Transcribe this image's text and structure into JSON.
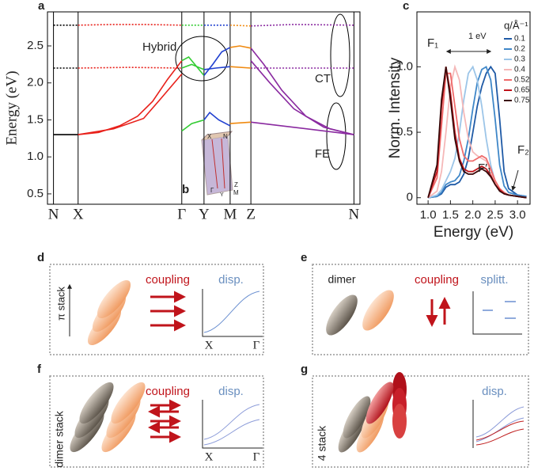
{
  "chart_data": [
    {
      "type": "line",
      "panel_label": "a",
      "ylabel": "Energy (eV)",
      "xlim": [
        -2,
        102
      ],
      "ylim": [
        0.36,
        2.96
      ],
      "xgrid": true,
      "xticks": [
        {
          "value": 0,
          "label": "N"
        },
        {
          "value": 8.2,
          "label": "X"
        },
        {
          "value": 42.7,
          "label": "Γ"
        },
        {
          "value": 50.1,
          "label": "Y"
        },
        {
          "value": 58.8,
          "label": "M"
        },
        {
          "value": 65.7,
          "label": "Z"
        },
        {
          "value": 100,
          "label": "N"
        }
      ],
      "yticks": [
        0.5,
        {
          "value": 1,
          "label": "1.0"
        },
        1.5,
        {
          "value": 2,
          "label": "2.0"
        },
        2.5
      ],
      "annotations": [
        "Hybrid",
        "CT",
        "FE"
      ],
      "series": [
        {
          "color": "#000000",
          "dash": true,
          "x": [
            0,
            8.2
          ],
          "values": [
            2.78,
            2.78
          ]
        },
        {
          "color": "#e8201a",
          "dash": true,
          "x": [
            8.2,
            20,
            30,
            42.7
          ],
          "values": [
            2.78,
            2.79,
            2.79,
            2.78
          ]
        },
        {
          "color": "#33cc33",
          "dash": true,
          "x": [
            42.7,
            50.1
          ],
          "values": [
            2.78,
            2.78
          ]
        },
        {
          "color": "#2040d0",
          "dash": true,
          "x": [
            50.1,
            58.8
          ],
          "values": [
            2.78,
            2.78
          ]
        },
        {
          "color": "#f08a10",
          "dash": true,
          "x": [
            58.8,
            65.7
          ],
          "values": [
            2.78,
            2.77
          ]
        },
        {
          "color": "#8a2aa0",
          "dash": true,
          "x": [
            65.7,
            80,
            100
          ],
          "values": [
            2.77,
            2.79,
            2.78
          ]
        },
        {
          "color": "#000000",
          "dash": true,
          "x": [
            0,
            8.2
          ],
          "values": [
            2.2,
            2.2
          ]
        },
        {
          "color": "#e8201a",
          "dash": true,
          "x": [
            8.2,
            25,
            42.7
          ],
          "values": [
            2.2,
            2.21,
            2.2
          ]
        },
        {
          "color": "#33cc33",
          "x": [
            42.7,
            46,
            50.1
          ],
          "values": [
            2.2,
            2.25,
            2.18
          ]
        },
        {
          "color": "#2040d0",
          "x": [
            50.1,
            54,
            58.8
          ],
          "values": [
            2.18,
            2.2,
            2.22
          ]
        },
        {
          "color": "#f08a10",
          "x": [
            58.8,
            65.7
          ],
          "values": [
            2.22,
            2.2
          ]
        },
        {
          "color": "#8a2aa0",
          "dash": true,
          "x": [
            65.7,
            80,
            100
          ],
          "values": [
            2.2,
            2.2,
            2.2
          ]
        },
        {
          "color": "#000000",
          "x": [
            0,
            8.2
          ],
          "values": [
            1.3,
            1.3
          ]
        },
        {
          "color": "#e8201a",
          "x": [
            8.2,
            15,
            22,
            28,
            33,
            38,
            42.7
          ],
          "values": [
            1.3,
            1.33,
            1.42,
            1.55,
            1.75,
            2.05,
            2.3
          ]
        },
        {
          "color": "#e8201a",
          "x": [
            8.2,
            20,
            30,
            36,
            42.7
          ],
          "values": [
            1.3,
            1.38,
            1.52,
            1.8,
            2.12
          ]
        },
        {
          "color": "#33cc33",
          "x": [
            42.7,
            45,
            50.1
          ],
          "values": [
            2.3,
            2.35,
            2.1
          ]
        },
        {
          "color": "#2040d0",
          "x": [
            50.1,
            53,
            56,
            58.8
          ],
          "values": [
            2.1,
            2.25,
            2.42,
            2.48
          ]
        },
        {
          "color": "#f08a10",
          "x": [
            58.8,
            62,
            65.7
          ],
          "values": [
            2.48,
            2.5,
            2.47
          ]
        },
        {
          "color": "#8a2aa0",
          "x": [
            65.7,
            70,
            76,
            84,
            92,
            100
          ],
          "values": [
            2.47,
            2.25,
            1.9,
            1.55,
            1.38,
            1.3
          ]
        },
        {
          "color": "#8a2aa0",
          "x": [
            65.7,
            72,
            80,
            90,
            100
          ],
          "values": [
            2.3,
            2.0,
            1.65,
            1.4,
            1.3
          ]
        },
        {
          "color": "#33cc33",
          "x": [
            42.7,
            46,
            50.1
          ],
          "values": [
            1.35,
            1.45,
            1.5
          ]
        },
        {
          "color": "#2040d0",
          "x": [
            50.1,
            52,
            55,
            58.8
          ],
          "values": [
            1.5,
            1.6,
            1.5,
            1.42
          ]
        },
        {
          "color": "#f08a10",
          "x": [
            58.8,
            65.7
          ],
          "values": [
            1.45,
            1.47
          ]
        },
        {
          "color": "#8a2aa0",
          "x": [
            65.7,
            80,
            100
          ],
          "values": [
            1.47,
            1.4,
            1.3
          ]
        }
      ]
    },
    {
      "type": "line",
      "panel_label": "c",
      "xlabel": "Energy (eV)",
      "ylabel": "Norm. Intensity",
      "legend_title": "q/Å⁻¹",
      "legend": "upper right",
      "xlim": [
        0.75,
        3.28
      ],
      "ylim": [
        -0.05,
        1.42
      ],
      "xticks": [
        {
          "value": 1,
          "label": "1.0"
        },
        1.5,
        {
          "value": 2,
          "label": "2.0"
        },
        2.5,
        {
          "value": 3,
          "label": "3.0"
        }
      ],
      "yticks": [
        0,
        0.5,
        {
          "value": 1,
          "label": "1.0"
        }
      ],
      "annotations": [
        "F₁",
        "1 eV",
        "F′₁",
        "F₂"
      ],
      "x": [
        1.0,
        1.2,
        1.3,
        1.4,
        1.5,
        1.6,
        1.7,
        1.8,
        1.9,
        2.0,
        2.1,
        2.2,
        2.3,
        2.4,
        2.5,
        2.6,
        2.7,
        2.8,
        3.0,
        3.2
      ],
      "series": [
        {
          "name": "0.1",
          "color": "#1f5aa6",
          "values": [
            0,
            0.01,
            0.03,
            0.08,
            0.1,
            0.1,
            0.12,
            0.18,
            0.3,
            0.5,
            0.7,
            0.85,
            0.95,
            1.0,
            0.95,
            0.6,
            0.2,
            0.07,
            0.02,
            0.01
          ]
        },
        {
          "name": "0.2",
          "color": "#3f87c8",
          "values": [
            0,
            0.01,
            0.04,
            0.1,
            0.12,
            0.13,
            0.17,
            0.28,
            0.45,
            0.68,
            0.88,
            0.98,
            1.0,
            0.9,
            0.6,
            0.25,
            0.09,
            0.04,
            0.02,
            0.01
          ]
        },
        {
          "name": "0.3",
          "color": "#9cc5e8",
          "values": [
            0,
            0.02,
            0.06,
            0.13,
            0.2,
            0.3,
            0.5,
            0.75,
            0.95,
            1.0,
            0.9,
            0.7,
            0.45,
            0.25,
            0.12,
            0.06,
            0.03,
            0.02,
            0.01,
            0
          ]
        },
        {
          "name": "0.4",
          "color": "#f5b8b8",
          "values": [
            0,
            0.05,
            0.2,
            0.5,
            0.85,
            1.0,
            0.9,
            0.65,
            0.45,
            0.35,
            0.32,
            0.3,
            0.28,
            0.2,
            0.12,
            0.06,
            0.03,
            0.02,
            0.01,
            0
          ]
        },
        {
          "name": "0.52",
          "color": "#ef6b6b",
          "values": [
            0,
            0.15,
            0.55,
            0.95,
            0.95,
            0.7,
            0.45,
            0.32,
            0.28,
            0.28,
            0.3,
            0.32,
            0.3,
            0.22,
            0.13,
            0.07,
            0.04,
            0.02,
            0.01,
            0
          ]
        },
        {
          "name": "0.65",
          "color": "#c0141b",
          "values": [
            0,
            0.2,
            0.7,
            1.0,
            0.8,
            0.5,
            0.3,
            0.22,
            0.2,
            0.2,
            0.22,
            0.24,
            0.22,
            0.17,
            0.1,
            0.06,
            0.03,
            0.02,
            0.01,
            0
          ]
        },
        {
          "name": "0.75",
          "color": "#3a0a0a",
          "values": [
            0,
            0.25,
            0.75,
            1.0,
            0.75,
            0.45,
            0.28,
            0.2,
            0.18,
            0.18,
            0.2,
            0.22,
            0.2,
            0.16,
            0.1,
            0.05,
            0.03,
            0.02,
            0.01,
            0
          ]
        }
      ]
    }
  ],
  "inset": {
    "label": "b",
    "points": [
      "X",
      "N",
      "Z",
      "M",
      "Γ",
      "Y"
    ]
  },
  "panels": [
    {
      "label": "d",
      "stack": "π stack",
      "coupling": "coupling",
      "result": "disp.",
      "axis": [
        "X",
        "Γ"
      ]
    },
    {
      "label": "e",
      "stack": "dimer",
      "coupling": "coupling",
      "result": "splitt."
    },
    {
      "label": "f",
      "stack": "dimer stack",
      "coupling": "coupling",
      "result": "disp.",
      "axis": [
        "X",
        "Γ"
      ]
    },
    {
      "label": "g",
      "stack": "4 stack",
      "result": "disp."
    }
  ]
}
